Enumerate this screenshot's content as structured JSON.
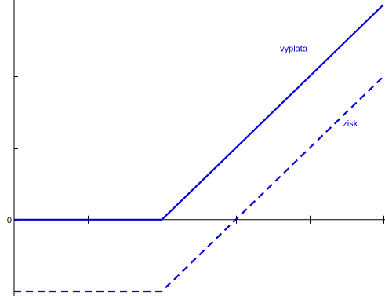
{
  "chart_data": {
    "type": "line",
    "title": "",
    "xlabel": "",
    "ylabel": "",
    "xlim": [
      0,
      5
    ],
    "ylim": [
      -1,
      3
    ],
    "y_tick_values": [
      -1,
      0,
      1,
      2,
      3
    ],
    "y_tick_labels": [
      {
        "value": 0,
        "label": "0"
      }
    ],
    "x_tick_values": [
      1,
      2,
      3,
      4,
      5
    ],
    "grid": false,
    "series": [
      {
        "name": "vyplata",
        "color": "#0000dd",
        "style": "solid",
        "x": [
          0,
          2,
          5
        ],
        "y": [
          0,
          0,
          3
        ]
      },
      {
        "name": "zisk",
        "color": "#0000dd",
        "style": "dashed",
        "x": [
          0,
          2,
          5
        ],
        "y": [
          -1,
          -1,
          2
        ]
      }
    ],
    "annotations": [
      {
        "text": "vyplata",
        "x": 3.6,
        "y": 2.35
      },
      {
        "text": "zisk",
        "x": 4.45,
        "y": 1.3
      }
    ]
  }
}
